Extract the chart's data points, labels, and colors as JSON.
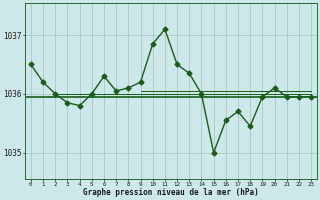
{
  "title": "Graphe pression niveau de la mer (hPa)",
  "bg_color": "#cce8e8",
  "line_color": "#1a5c1a",
  "grid_color": "#a8c8c8",
  "x_values": [
    0,
    1,
    2,
    3,
    4,
    5,
    6,
    7,
    8,
    9,
    10,
    11,
    12,
    13,
    14,
    15,
    16,
    17,
    18,
    19,
    20,
    21,
    22,
    23
  ],
  "y_main": [
    1036.5,
    1036.2,
    1036.0,
    1035.85,
    1035.8,
    1036.0,
    1036.3,
    1036.05,
    1036.1,
    1036.2,
    1036.85,
    1037.1,
    1036.5,
    1036.35,
    1036.0,
    1035.0,
    1035.55,
    1035.7,
    1035.45,
    1035.95,
    1036.1,
    1035.95,
    1035.95,
    1035.95
  ],
  "y_smooth": [
    1036.0,
    1036.0,
    1036.0,
    1036.0,
    1036.0,
    1036.0,
    1036.0,
    1036.0,
    1036.0,
    1036.0,
    1036.0,
    1036.0,
    1036.0,
    1036.0,
    1036.0,
    1035.95,
    1035.95,
    1035.95,
    1035.95,
    1035.95,
    1035.95,
    1035.95,
    1035.95,
    1035.95
  ],
  "y_flat1": [
    1036.0,
    1036.0,
    1036.0,
    1036.0,
    1036.0,
    1036.0,
    1036.0,
    1036.0,
    1036.0,
    1036.0,
    1036.05,
    1036.05,
    1036.05,
    1036.05,
    1036.05,
    1036.05,
    1036.05,
    1036.05,
    1036.05,
    1036.05,
    1036.1,
    1036.1,
    1036.1,
    1036.1
  ],
  "y_flat2": [
    1035.95,
    1035.95,
    1035.95,
    1035.95,
    1035.95,
    1035.95,
    1035.95,
    1035.95,
    1035.95,
    1035.95,
    1035.95,
    1035.95,
    1035.95,
    1035.95,
    1035.95,
    1035.95,
    1035.95,
    1035.95,
    1035.95,
    1035.95,
    1035.95,
    1035.95,
    1035.95,
    1035.95
  ],
  "hline_y": 1035.95,
  "yticks": [
    1035,
    1036,
    1037
  ],
  "xtick_labels": [
    "0",
    "1",
    "2",
    "3",
    "4",
    "5",
    "6",
    "7",
    "8",
    "9",
    "10",
    "11",
    "12",
    "13",
    "14",
    "15",
    "16",
    "17",
    "18",
    "19",
    "20",
    "21",
    "22",
    "23"
  ],
  "xlim": [
    -0.5,
    23.5
  ],
  "ylim": [
    1034.55,
    1037.55
  ]
}
